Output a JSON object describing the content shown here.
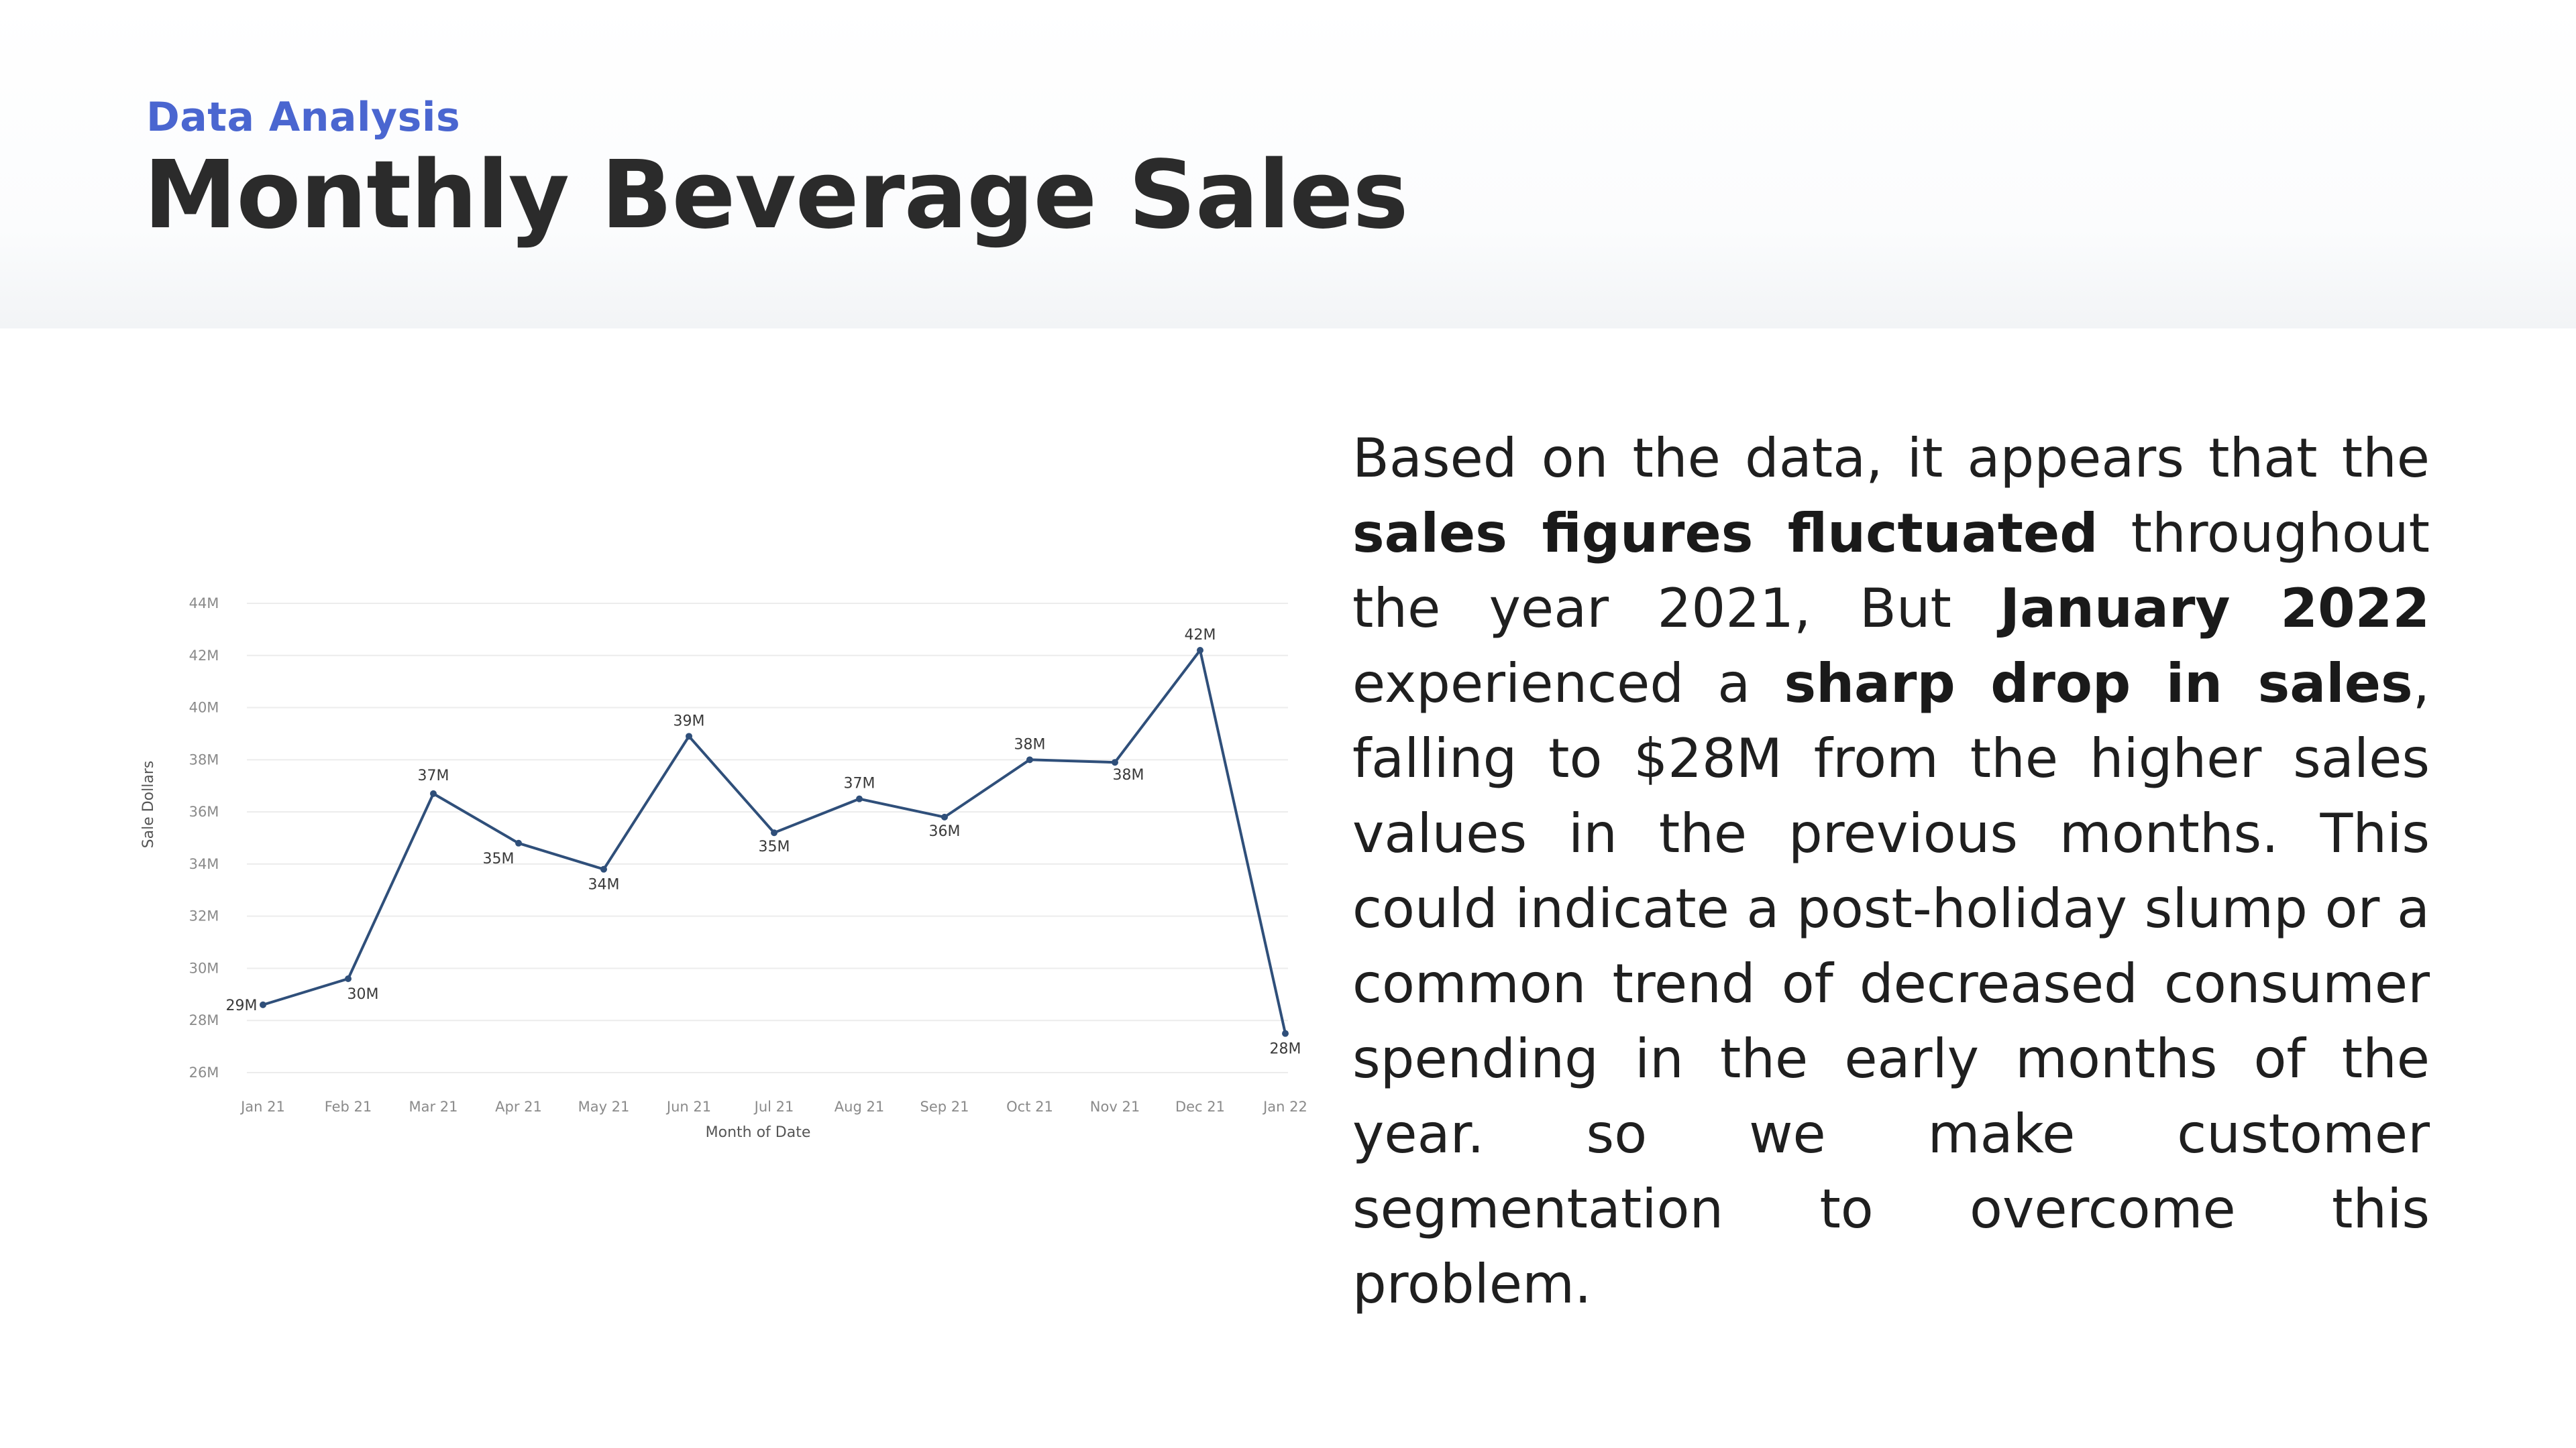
{
  "header": {
    "eyebrow": "Data Analysis",
    "title": "Monthly Beverage Sales"
  },
  "summary": {
    "segments": [
      {
        "text": "Based on the data, it appears that the ",
        "bold": false
      },
      {
        "text": "sales figures fluctuated",
        "bold": true
      },
      {
        "text": " throughout the year 2021, But ",
        "bold": false
      },
      {
        "text": "January 2022",
        "bold": true
      },
      {
        "text": " experienced a ",
        "bold": false
      },
      {
        "text": "sharp drop in sales",
        "bold": true
      },
      {
        "text": ", falling to $28M from the higher sales values in the previous months. This could indicate a post-holiday slump or a common trend of decreased consumer spending in the early months of the year. so we make customer segmentation to overcome this problem.",
        "bold": false
      }
    ]
  },
  "chart_data": {
    "type": "line",
    "xlabel": "Month of Date",
    "ylabel": "Sale Dollars",
    "categories": [
      "Jan 21",
      "Feb 21",
      "Mar 21",
      "Apr 21",
      "May 21",
      "Jun 21",
      "Jul 21",
      "Aug 21",
      "Sep 21",
      "Oct 21",
      "Nov 21",
      "Dec 21",
      "Jan 22"
    ],
    "values": [
      28.6,
      29.6,
      36.7,
      34.8,
      33.8,
      38.9,
      35.2,
      36.5,
      35.8,
      38.0,
      37.9,
      42.2,
      27.5
    ],
    "data_labels": [
      "29M",
      "30M",
      "37M",
      "35M",
      "34M",
      "39M",
      "35M",
      "37M",
      "36M",
      "38M",
      "38M",
      "42M",
      "28M"
    ],
    "y_ticks": [
      "26M",
      "28M",
      "30M",
      "32M",
      "34M",
      "36M",
      "38M",
      "40M",
      "42M",
      "44M"
    ],
    "ylim": [
      26,
      44
    ],
    "grid": true,
    "line_color": "#2f4f7a"
  }
}
